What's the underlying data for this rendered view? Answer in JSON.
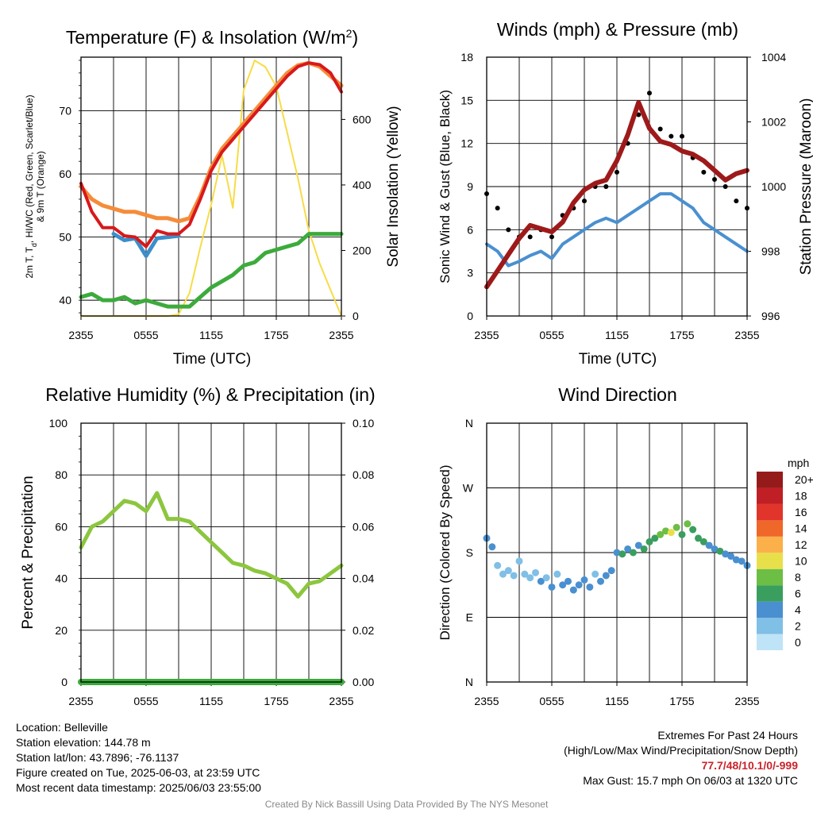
{
  "figure": {
    "info": {
      "location": "Location: Belleville",
      "elevation": "Station elevation: 144.78 m",
      "latlon": "Station lat/lon: 43.7896; -76.1137",
      "created": "Figure created on Tue, 2025-06-03, at 23:59 UTC",
      "recent": "Most recent data timestamp: 2025/06/03 23:55:00"
    },
    "extremes": {
      "heading": "Extremes For Past 24 Hours",
      "subheading": "(High/Low/Max Wind/Precipitation/Snow Depth)",
      "value": "77.7/48/10.1/0/-999",
      "gust": "Max Gust: 15.7 mph On 06/03 at 1320 UTC"
    },
    "credit": "Created By Nick Bassill Using Data Provided By The NYS Mesonet"
  },
  "chart_data": [
    {
      "type": "line",
      "id": "temp",
      "title": "Temperature (F) & Insolation (W/m",
      "title_sup": "2",
      "title_end": ")",
      "xlabel": "Time (UTC)",
      "ylabel_lines": [
        "2m T, T",
        "d",
        ", HI/WC (Red, Green, Scarlet/Blue)",
        "& 9m T (Orange)"
      ],
      "y2label": "Solar Insolation (Yellow)",
      "x_ticks": [
        "2355",
        "0555",
        "1155",
        "1755",
        "2355"
      ],
      "y_ticks": [
        40,
        50,
        60,
        70
      ],
      "ylim": [
        37.5,
        78.5
      ],
      "y2_ticks": [
        0,
        200,
        400,
        600
      ],
      "y2lim": [
        0,
        790
      ],
      "x": [
        0,
        1,
        2,
        3,
        4,
        5,
        6,
        7,
        8,
        9,
        10,
        11,
        12,
        13,
        14,
        15,
        16,
        17,
        18,
        19,
        20,
        21,
        22,
        23,
        24
      ],
      "series": [
        {
          "role": "2m temperature",
          "color": "#d7191c",
          "axis": "left",
          "values": [
            58.5,
            54.0,
            51.5,
            51.5,
            50.2,
            50.0,
            48.5,
            51.0,
            50.5,
            50.5,
            52.0,
            56.0,
            60.5,
            63.5,
            65.5,
            67.5,
            69.5,
            71.5,
            73.5,
            75.5,
            77.0,
            77.6,
            77.3,
            76.0,
            73.0
          ]
        },
        {
          "role": "9m temperature",
          "color": "#f58c3a",
          "axis": "left",
          "values": [
            58.0,
            56.0,
            55.0,
            54.5,
            54.0,
            54.0,
            53.5,
            53.0,
            53.0,
            52.5,
            53.0,
            56.5,
            61.0,
            64.0,
            66.0,
            68.0,
            70.0,
            72.0,
            74.0,
            76.0,
            77.2,
            77.6,
            77.0,
            75.5,
            74.0
          ]
        },
        {
          "role": "wind chill",
          "color": "#3d8ec9",
          "axis": "left",
          "values": [
            null,
            53.0,
            null,
            50.5,
            49.5,
            49.8,
            47.0,
            49.8,
            50.0,
            50.2,
            null,
            null,
            null,
            null,
            null,
            null,
            null,
            null,
            null,
            null,
            null,
            null,
            null,
            null,
            null
          ]
        },
        {
          "role": "dew point",
          "color": "#3cab3c",
          "axis": "left",
          "values": [
            40.5,
            41.0,
            40.0,
            40.0,
            40.5,
            39.5,
            40.0,
            39.5,
            39.0,
            39.0,
            39.0,
            40.5,
            42.0,
            43.0,
            44.0,
            45.5,
            46.0,
            47.5,
            48.0,
            48.5,
            49.0,
            50.5,
            50.5,
            50.5,
            50.5
          ]
        },
        {
          "role": "solar insolation",
          "color": "#f7dc46",
          "axis": "right",
          "values": [
            0,
            0,
            0,
            0,
            0,
            0,
            0,
            0,
            0,
            5,
            70,
            210,
            340,
            490,
            330,
            690,
            780,
            760,
            700,
            560,
            420,
            260,
            160,
            80,
            0
          ]
        }
      ]
    },
    {
      "type": "scatter",
      "id": "wind",
      "title": "Winds (mph) & Pressure (mb)",
      "xlabel": "Time (UTC)",
      "ylabel": "Sonic Wind & Gust (Blue, Black)",
      "y2label": "Station Pressure (Maroon)",
      "x_ticks": [
        "2355",
        "0555",
        "1155",
        "1755",
        "2355"
      ],
      "y_ticks": [
        0,
        3,
        6,
        9,
        12,
        15,
        18
      ],
      "ylim": [
        0,
        18
      ],
      "y2_ticks": [
        996,
        998,
        1000,
        1002,
        1004
      ],
      "y2lim": [
        996,
        1004
      ],
      "x": [
        0,
        1,
        2,
        3,
        4,
        5,
        6,
        7,
        8,
        9,
        10,
        11,
        12,
        13,
        14,
        15,
        16,
        17,
        18,
        19,
        20,
        21,
        22,
        23,
        24
      ],
      "series": [
        {
          "role": "sonic wind",
          "color": "#4a90d0",
          "axis": "left",
          "values": [
            5.0,
            4.5,
            3.5,
            3.8,
            4.2,
            4.5,
            4.0,
            5.0,
            5.5,
            6.0,
            6.5,
            6.8,
            6.5,
            7.0,
            7.5,
            8.0,
            8.5,
            8.5,
            8.0,
            7.5,
            6.5,
            6.0,
            5.5,
            5.0,
            4.5
          ]
        },
        {
          "role": "gust",
          "color": "#000000",
          "axis": "left",
          "values": [
            8.5,
            7.5,
            6.0,
            5.5,
            5.5,
            6.0,
            5.5,
            7.0,
            7.5,
            8.0,
            9.0,
            9.0,
            10.0,
            12.0,
            14.0,
            15.5,
            13.0,
            12.5,
            12.5,
            11.0,
            10.0,
            9.5,
            9.0,
            8.0,
            7.5
          ]
        },
        {
          "role": "station pressure",
          "color": "#9e1a1a",
          "axis": "right",
          "values": [
            996.9,
            997.4,
            997.9,
            998.4,
            998.8,
            998.7,
            998.6,
            998.9,
            999.5,
            999.9,
            1000.1,
            1000.2,
            1000.8,
            1001.6,
            1002.6,
            1001.8,
            1001.4,
            1001.3,
            1001.1,
            1001.0,
            1000.8,
            1000.5,
            1000.2,
            1000.4,
            1000.5
          ]
        }
      ]
    },
    {
      "type": "line",
      "id": "rh",
      "title": "Relative Humidity (%) & Precipitation (in)",
      "ylabel": "Percent & Precipitation",
      "x_ticks": [
        "2355",
        "0555",
        "1155",
        "1755",
        "2355"
      ],
      "y_ticks": [
        0,
        20,
        40,
        60,
        80,
        100
      ],
      "ylim": [
        0,
        100
      ],
      "y2_ticks": [
        "0.00",
        "0.02",
        "0.04",
        "0.06",
        "0.08",
        "0.10"
      ],
      "y2lim": [
        0,
        0.1
      ],
      "x": [
        0,
        1,
        2,
        3,
        4,
        5,
        6,
        7,
        8,
        9,
        10,
        11,
        12,
        13,
        14,
        15,
        16,
        17,
        18,
        19,
        20,
        21,
        22,
        23,
        24
      ],
      "series": [
        {
          "role": "relative humidity",
          "color": "#8cc63f",
          "axis": "left",
          "values": [
            52,
            60,
            62,
            66,
            70,
            69,
            66,
            73,
            63,
            63,
            62,
            58,
            54,
            50,
            46,
            45,
            43,
            42,
            40,
            38,
            33,
            38,
            39,
            42,
            45
          ]
        },
        {
          "role": "precipitation",
          "color": "#3cab3c",
          "axis": "right",
          "values": [
            0,
            0,
            0,
            0,
            0,
            0,
            0,
            0,
            0,
            0,
            0,
            0,
            0,
            0,
            0,
            0,
            0,
            0,
            0,
            0,
            0,
            0,
            0,
            0,
            0
          ]
        }
      ]
    },
    {
      "type": "scatter",
      "id": "dir",
      "title": "Wind Direction",
      "ylabel": "Direction (Colored By Speed)",
      "x_ticks": [
        "2355",
        "0555",
        "1155",
        "1755",
        "2355"
      ],
      "y_ticks": [
        "N",
        "E",
        "S",
        "W",
        "N"
      ],
      "ylim": [
        0,
        360
      ],
      "colorbar": {
        "title": "mph",
        "labels": [
          "0",
          "2",
          "4",
          "6",
          "8",
          "10",
          "12",
          "14",
          "16",
          "18",
          "20+"
        ],
        "colors": [
          "#bfe4f7",
          "#80bfe6",
          "#4a90d0",
          "#3a9e5f",
          "#6cbe45",
          "#e8e04a",
          "#fbb04a",
          "#f0672a",
          "#e1342a",
          "#c01f25",
          "#951b1b"
        ]
      },
      "x": [
        0,
        0.5,
        1,
        1.5,
        2,
        2.5,
        3,
        3.5,
        4,
        4.5,
        5,
        5.5,
        6,
        6.5,
        7,
        7.5,
        8,
        8.5,
        9,
        9.5,
        10,
        10.5,
        11,
        11.5,
        12,
        12.5,
        13,
        13.5,
        14,
        14.5,
        15,
        15.5,
        16,
        16.5,
        17,
        17.5,
        18,
        18.5,
        19,
        19.5,
        20,
        20.5,
        21,
        21.5,
        22,
        22.5,
        23,
        23.5,
        24
      ],
      "direction": [
        200,
        188,
        162,
        150,
        155,
        148,
        168,
        150,
        145,
        152,
        140,
        145,
        132,
        150,
        135,
        140,
        128,
        135,
        142,
        132,
        150,
        140,
        148,
        155,
        180,
        178,
        185,
        180,
        190,
        185,
        195,
        200,
        205,
        210,
        208,
        215,
        205,
        220,
        212,
        200,
        195,
        190,
        185,
        182,
        178,
        175,
        170,
        168,
        162
      ],
      "speed": [
        4,
        4,
        3,
        3,
        2,
        3,
        2,
        3,
        2,
        3,
        4,
        2,
        4,
        3,
        4,
        4,
        5,
        4,
        4,
        4,
        3,
        4,
        4,
        5,
        5,
        6,
        5,
        6,
        5,
        6,
        7,
        6,
        8,
        9,
        10,
        8,
        7,
        8,
        7,
        6,
        6,
        5,
        5,
        6,
        5,
        5,
        4,
        4,
        4
      ]
    }
  ]
}
